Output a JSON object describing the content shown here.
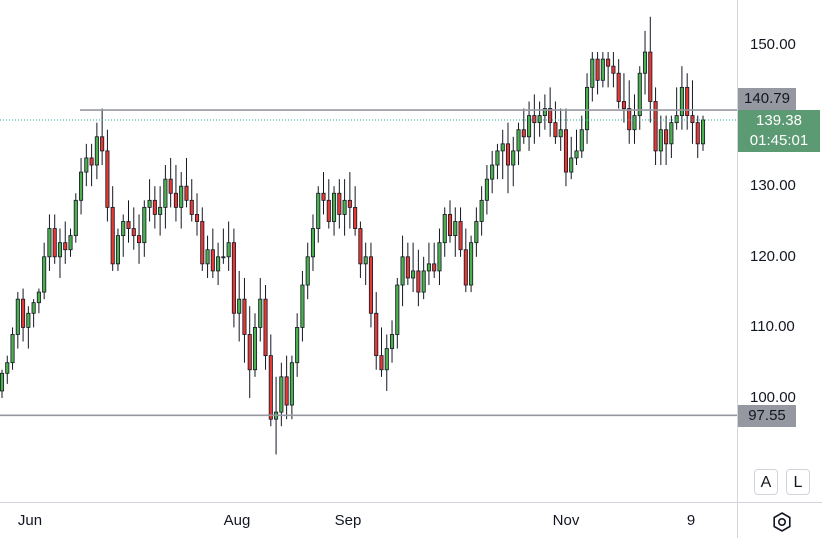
{
  "chart_data": {
    "type": "candlestick",
    "y_axis_ticks": [
      "150.00",
      "130.00",
      "120.00",
      "110.00",
      "100.00"
    ],
    "x_axis_ticks": [
      "Jun",
      "Aug",
      "Sep",
      "Nov",
      "9"
    ],
    "ylim": [
      90,
      155
    ],
    "horizontal_lines": [
      {
        "price": 140.79,
        "label": "140.79"
      },
      {
        "price": 97.55,
        "label": "97.55"
      }
    ],
    "last_price": {
      "price": 139.38,
      "label": "139.38",
      "countdown": "01:45:01"
    },
    "colors": {
      "up": "#26a69a",
      "down": "#ef5350",
      "up_body": "#4caf50",
      "down_body": "#e53935",
      "level_line": "#9598a1",
      "last_line": "#26a69a"
    },
    "candles": [
      [
        101,
        104,
        100,
        103.5
      ],
      [
        103.5,
        106,
        102,
        105
      ],
      [
        105,
        110,
        104,
        109
      ],
      [
        109,
        115,
        107,
        114
      ],
      [
        114,
        115.5,
        108,
        110
      ],
      [
        110,
        113,
        107,
        112
      ],
      [
        112,
        114,
        110,
        113.5
      ],
      [
        113.5,
        115.5,
        112,
        115
      ],
      [
        115,
        122,
        114,
        120
      ],
      [
        120,
        126,
        118,
        124
      ],
      [
        124,
        126,
        119,
        120
      ],
      [
        120,
        124,
        117,
        122
      ],
      [
        122,
        125,
        119,
        121
      ],
      [
        121,
        124,
        120,
        123
      ],
      [
        123,
        129,
        122,
        128
      ],
      [
        128,
        134,
        126,
        132
      ],
      [
        132,
        136,
        130,
        134
      ],
      [
        134,
        136,
        130,
        133
      ],
      [
        133,
        139,
        131,
        137
      ],
      [
        137,
        141,
        133,
        135
      ],
      [
        135,
        138,
        125,
        127
      ],
      [
        127,
        130,
        118,
        119
      ],
      [
        119,
        124,
        118,
        123
      ],
      [
        123,
        126,
        120,
        125
      ],
      [
        125,
        128,
        122,
        124
      ],
      [
        124,
        127,
        121,
        123
      ],
      [
        123,
        126,
        119,
        122
      ],
      [
        122,
        128,
        120,
        127
      ],
      [
        127,
        131,
        125,
        128
      ],
      [
        128,
        130,
        124,
        126
      ],
      [
        126,
        130,
        123,
        127
      ],
      [
        127,
        133,
        124,
        131
      ],
      [
        131,
        134,
        127,
        129
      ],
      [
        129,
        133,
        125,
        127
      ],
      [
        127,
        132,
        124,
        130
      ],
      [
        130,
        134,
        127,
        128
      ],
      [
        128,
        131,
        125,
        126
      ],
      [
        126,
        129,
        123,
        125
      ],
      [
        125,
        127,
        118,
        119
      ],
      [
        119,
        123,
        117,
        121
      ],
      [
        121,
        124,
        117,
        118
      ],
      [
        118,
        122,
        116,
        120
      ],
      [
        120,
        124,
        119,
        120
      ],
      [
        120,
        125,
        118,
        122
      ],
      [
        122,
        124,
        110,
        112
      ],
      [
        112,
        118,
        108,
        114
      ],
      [
        114,
        117,
        105,
        109
      ],
      [
        109,
        113,
        100,
        104
      ],
      [
        104,
        112,
        103,
        110
      ],
      [
        110,
        117,
        108,
        114
      ],
      [
        114,
        116,
        104,
        106
      ],
      [
        106,
        109,
        96,
        97
      ],
      [
        97,
        103,
        92,
        98
      ],
      [
        98,
        105,
        96,
        103
      ],
      [
        103,
        106,
        97,
        99
      ],
      [
        99,
        106,
        97,
        105
      ],
      [
        105,
        112,
        103,
        110
      ],
      [
        110,
        118,
        108,
        116
      ],
      [
        116,
        122,
        114,
        120
      ],
      [
        120,
        126,
        118,
        124
      ],
      [
        124,
        130,
        122,
        129
      ],
      [
        129,
        132,
        126,
        128
      ],
      [
        128,
        131,
        124,
        125
      ],
      [
        125,
        130,
        123,
        129
      ],
      [
        129,
        131,
        124,
        126
      ],
      [
        126,
        131,
        123,
        128
      ],
      [
        128,
        132,
        124,
        127
      ],
      [
        127,
        130,
        123,
        124
      ],
      [
        124,
        125,
        117,
        119
      ],
      [
        119,
        122,
        116,
        120
      ],
      [
        120,
        122,
        110,
        112
      ],
      [
        112,
        115,
        104,
        106
      ],
      [
        106,
        110,
        103,
        104
      ],
      [
        104,
        109,
        101,
        107
      ],
      [
        107,
        111,
        105,
        109
      ],
      [
        109,
        117,
        107,
        116
      ],
      [
        116,
        123,
        113,
        120
      ],
      [
        120,
        122,
        116,
        117
      ],
      [
        117,
        122,
        115,
        118
      ],
      [
        118,
        121,
        113,
        115
      ],
      [
        115,
        120,
        114,
        118
      ],
      [
        118,
        122,
        116,
        119
      ],
      [
        119,
        122,
        117,
        118
      ],
      [
        118,
        124,
        116,
        122
      ],
      [
        122,
        127,
        120,
        126
      ],
      [
        126,
        128,
        122,
        123
      ],
      [
        123,
        127,
        120,
        125
      ],
      [
        125,
        127,
        120,
        121
      ],
      [
        121,
        124,
        115,
        116
      ],
      [
        116,
        123,
        115,
        122
      ],
      [
        122,
        127,
        120,
        125
      ],
      [
        125,
        130,
        123,
        128
      ],
      [
        128,
        133,
        126,
        131
      ],
      [
        131,
        135,
        129,
        133
      ],
      [
        133,
        136,
        131,
        135
      ],
      [
        135,
        138,
        131,
        136
      ],
      [
        136,
        139,
        129,
        133
      ],
      [
        133,
        137,
        130,
        135
      ],
      [
        135,
        139,
        133,
        138
      ],
      [
        138,
        141,
        136,
        137
      ],
      [
        137,
        142,
        135,
        140
      ],
      [
        140,
        143,
        136,
        139
      ],
      [
        139,
        142,
        137,
        140
      ],
      [
        140,
        143,
        138,
        141
      ],
      [
        141,
        144,
        137,
        139
      ],
      [
        139,
        142,
        136,
        137
      ],
      [
        137,
        141,
        135,
        138
      ],
      [
        138,
        141,
        130,
        132
      ],
      [
        132,
        137,
        131,
        134
      ],
      [
        134,
        138,
        133,
        135
      ],
      [
        135,
        140,
        134,
        138
      ],
      [
        138,
        146,
        136,
        144
      ],
      [
        144,
        149,
        142,
        148
      ],
      [
        148,
        149,
        143,
        145
      ],
      [
        145,
        149,
        144,
        148
      ],
      [
        148,
        149,
        144,
        147
      ],
      [
        147,
        149,
        144,
        146
      ],
      [
        146,
        148,
        141,
        142
      ],
      [
        142,
        146,
        139,
        141
      ],
      [
        141,
        145,
        136,
        138
      ],
      [
        138,
        143,
        136,
        140
      ],
      [
        140,
        147,
        138,
        146
      ],
      [
        146,
        152,
        143,
        149
      ],
      [
        149,
        154,
        139,
        142
      ],
      [
        142,
        144,
        133,
        135
      ],
      [
        135,
        140,
        133,
        138
      ],
      [
        138,
        140,
        133,
        136
      ],
      [
        136,
        140,
        134,
        139
      ],
      [
        139,
        144,
        138,
        140
      ],
      [
        140,
        147,
        138,
        144
      ],
      [
        144,
        146,
        138,
        140
      ],
      [
        140,
        145,
        136,
        139
      ],
      [
        139,
        140,
        134,
        136
      ],
      [
        136,
        140,
        135,
        139.38
      ]
    ]
  }
}
